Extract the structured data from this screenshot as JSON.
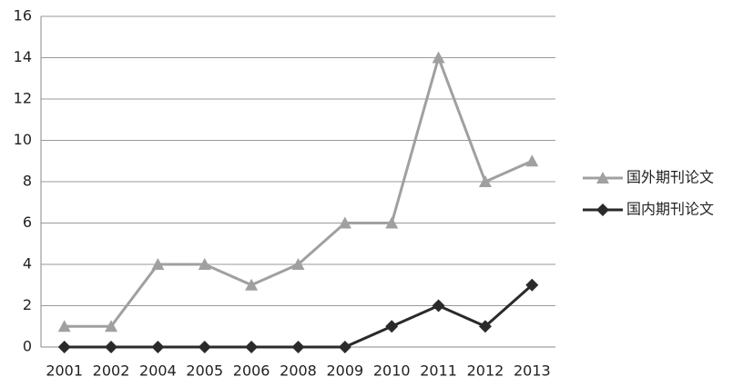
{
  "chart_data": {
    "type": "line",
    "categories": [
      "2001",
      "2002",
      "2004",
      "2005",
      "2006",
      "2008",
      "2009",
      "2010",
      "2011",
      "2012",
      "2013"
    ],
    "series": [
      {
        "name": "国外期刊论文",
        "color": "#a0a0a0",
        "marker": "triangle",
        "values": [
          1,
          1,
          4,
          4,
          3,
          4,
          6,
          6,
          14,
          8,
          9
        ]
      },
      {
        "name": "国内期刊论文",
        "color": "#2a2a2a",
        "marker": "diamond",
        "values": [
          0,
          0,
          0,
          0,
          0,
          0,
          0,
          1,
          2,
          1,
          3
        ]
      }
    ],
    "ylim": [
      0,
      16
    ],
    "yticks": [
      0,
      2,
      4,
      6,
      8,
      10,
      12,
      14,
      16
    ],
    "grid": true,
    "legend": "right"
  }
}
